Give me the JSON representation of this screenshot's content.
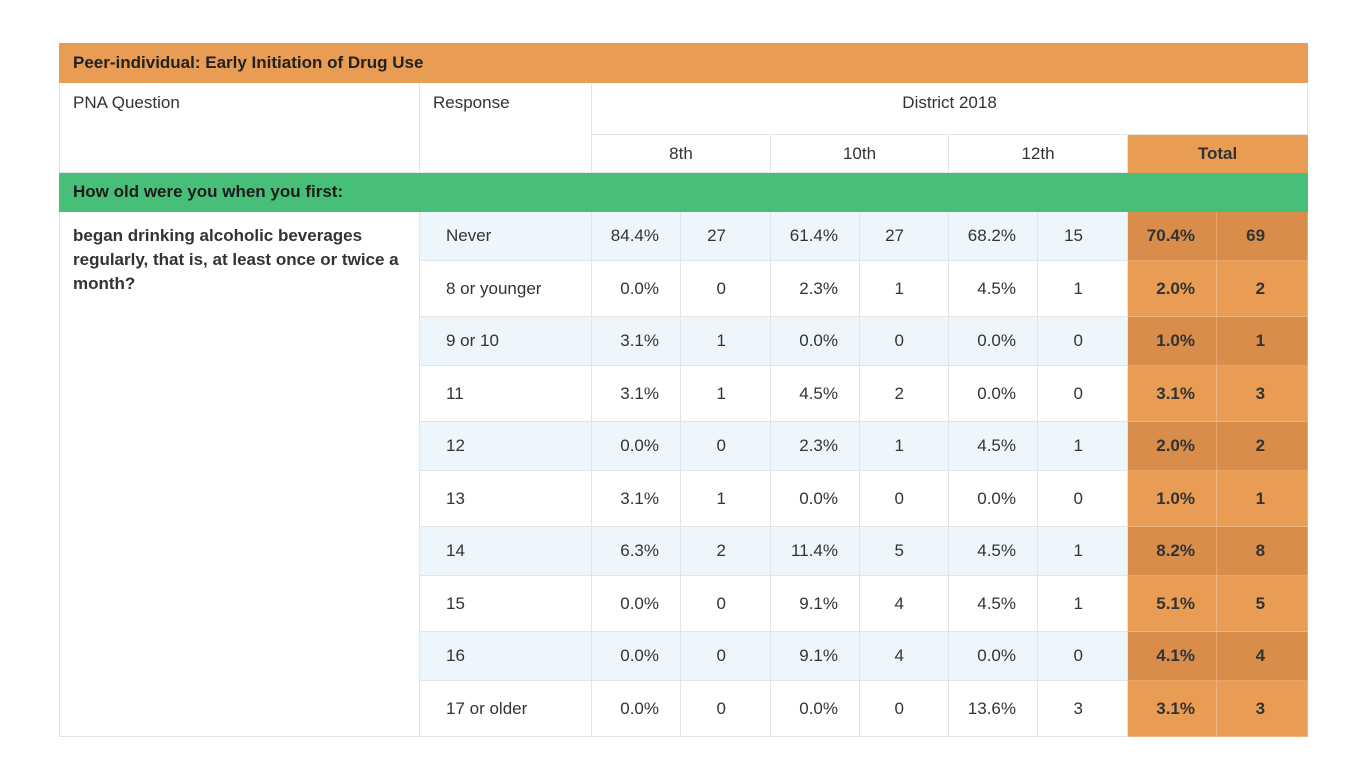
{
  "table": {
    "title": "Peer-individual: Early Initiation of Drug Use",
    "col_question": "PNA Question",
    "col_response": "Response",
    "group_header": "District 2018",
    "grades": [
      "8th",
      "10th",
      "12th"
    ],
    "total_label": "Total",
    "section_label": "How old were you when you first:",
    "question": "began drinking alcoholic beverages regularly, that is, at least once or twice a month?",
    "rows": [
      {
        "response": "Never",
        "g8_pct": "84.4%",
        "g8_n": "27",
        "g10_pct": "61.4%",
        "g10_n": "27",
        "g12_pct": "68.2%",
        "g12_n": "15",
        "total_pct": "70.4%",
        "total_n": "69"
      },
      {
        "response": "8 or younger",
        "g8_pct": "0.0%",
        "g8_n": "0",
        "g10_pct": "2.3%",
        "g10_n": "1",
        "g12_pct": "4.5%",
        "g12_n": "1",
        "total_pct": "2.0%",
        "total_n": "2"
      },
      {
        "response": "9 or 10",
        "g8_pct": "3.1%",
        "g8_n": "1",
        "g10_pct": "0.0%",
        "g10_n": "0",
        "g12_pct": "0.0%",
        "g12_n": "0",
        "total_pct": "1.0%",
        "total_n": "1"
      },
      {
        "response": "11",
        "g8_pct": "3.1%",
        "g8_n": "1",
        "g10_pct": "4.5%",
        "g10_n": "2",
        "g12_pct": "0.0%",
        "g12_n": "0",
        "total_pct": "3.1%",
        "total_n": "3"
      },
      {
        "response": "12",
        "g8_pct": "0.0%",
        "g8_n": "0",
        "g10_pct": "2.3%",
        "g10_n": "1",
        "g12_pct": "4.5%",
        "g12_n": "1",
        "total_pct": "2.0%",
        "total_n": "2"
      },
      {
        "response": "13",
        "g8_pct": "3.1%",
        "g8_n": "1",
        "g10_pct": "0.0%",
        "g10_n": "0",
        "g12_pct": "0.0%",
        "g12_n": "0",
        "total_pct": "1.0%",
        "total_n": "1"
      },
      {
        "response": "14",
        "g8_pct": "6.3%",
        "g8_n": "2",
        "g10_pct": "11.4%",
        "g10_n": "5",
        "g12_pct": "4.5%",
        "g12_n": "1",
        "total_pct": "8.2%",
        "total_n": "8"
      },
      {
        "response": "15",
        "g8_pct": "0.0%",
        "g8_n": "0",
        "g10_pct": "9.1%",
        "g10_n": "4",
        "g12_pct": "4.5%",
        "g12_n": "1",
        "total_pct": "5.1%",
        "total_n": "5"
      },
      {
        "response": "16",
        "g8_pct": "0.0%",
        "g8_n": "0",
        "g10_pct": "9.1%",
        "g10_n": "4",
        "g12_pct": "0.0%",
        "g12_n": "0",
        "total_pct": "4.1%",
        "total_n": "4"
      },
      {
        "response": "17 or older",
        "g8_pct": "0.0%",
        "g8_n": "0",
        "g10_pct": "0.0%",
        "g10_n": "0",
        "g12_pct": "13.6%",
        "g12_n": "3",
        "total_pct": "3.1%",
        "total_n": "3"
      }
    ]
  },
  "colors": {
    "title_bg": "#e89c54",
    "section_bg": "#47bf79",
    "total_bg": "#e89c54",
    "total_bg_alt": "#d98d4b",
    "stripe_bg": "#eef6fd"
  }
}
